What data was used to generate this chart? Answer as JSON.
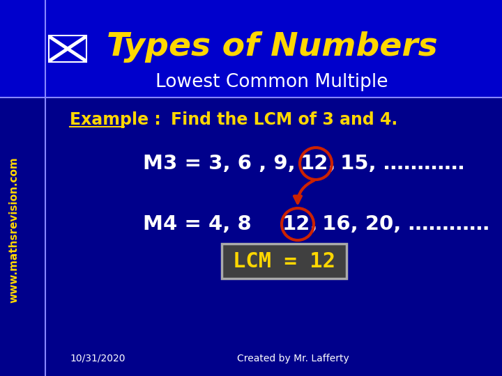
{
  "bg_color": "#00008B",
  "header_bg": "#0000CC",
  "title_text": "Types of Numbers",
  "title_color": "#FFD700",
  "subtitle_text": "Lowest Common Multiple",
  "subtitle_color": "#FFFFFF",
  "example_label": "Example :",
  "example_question": "Find the LCM of 3 and 4.",
  "example_color": "#FFD700",
  "m3_before": "M3 = 3, 6 , 9,",
  "m3_mid": "12,",
  "m3_after": " 15, …………",
  "m4_before": "M4 = 4, 8",
  "m4_mid": "12,",
  "m4_after": " 16, 20, …………",
  "series_color": "#FFFFFF",
  "highlight_color": "#CC2200",
  "lcm_box_text": "LCM = 12",
  "lcm_box_color": "#FFD700",
  "lcm_box_bg": "#404040",
  "lcm_box_edge": "#AAAAAA",
  "footer_date": "10/31/2020",
  "footer_credit": "Created by Mr. Lafferty",
  "footer_color": "#FFFFFF",
  "watermark": "www.mathsrevision.com",
  "watermark_color": "#FFD700",
  "divider_color": "#8888FF",
  "cross_color": "#FFFFFF"
}
